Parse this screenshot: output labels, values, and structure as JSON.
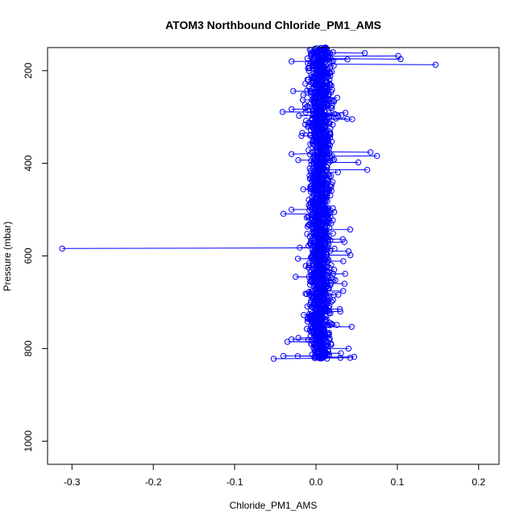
{
  "chart_data": {
    "type": "scatter",
    "title": "ATOM3 Northbound Chloride_PM1_AMS",
    "xlabel": "Chloride_PM1_AMS",
    "ylabel": "Pressure (mbar)",
    "xlim": [
      -0.33,
      0.225
    ],
    "ylim": [
      1050,
      150
    ],
    "y_reversed": true,
    "x_ticks": [
      -0.3,
      -0.2,
      -0.1,
      0.0,
      0.1,
      0.2
    ],
    "x_tick_labels": [
      "-0.3",
      "-0.2",
      "-0.1",
      "0.0",
      "0.1",
      "0.2"
    ],
    "y_ticks": [
      200,
      400,
      600,
      800,
      1000
    ],
    "y_tick_labels": [
      "200",
      "400",
      "600",
      "800",
      "1000"
    ],
    "grid": false,
    "legend": "none",
    "series_color": "#0000ff",
    "marker": "open-circle",
    "connected": true,
    "core_band": {
      "x_min": -0.01,
      "x_max": 0.02,
      "p_min": 150,
      "p_max": 822
    },
    "points": [
      {
        "x": -0.312,
        "y": 584
      },
      {
        "x": -0.02,
        "y": 582
      },
      {
        "x": 0.147,
        "y": 187
      },
      {
        "x": 0.104,
        "y": 175
      },
      {
        "x": 0.101,
        "y": 168
      },
      {
        "x": 0.06,
        "y": 162
      },
      {
        "x": -0.03,
        "y": 180
      },
      {
        "x": -0.028,
        "y": 244
      },
      {
        "x": -0.041,
        "y": 289
      },
      {
        "x": -0.03,
        "y": 283
      },
      {
        "x": 0.075,
        "y": 384
      },
      {
        "x": 0.067,
        "y": 376
      },
      {
        "x": 0.063,
        "y": 414
      },
      {
        "x": 0.052,
        "y": 398
      },
      {
        "x": -0.03,
        "y": 380
      },
      {
        "x": -0.04,
        "y": 509
      },
      {
        "x": -0.03,
        "y": 500
      },
      {
        "x": 0.042,
        "y": 543
      },
      {
        "x": 0.04,
        "y": 590
      },
      {
        "x": 0.035,
        "y": 570
      },
      {
        "x": -0.025,
        "y": 645
      },
      {
        "x": 0.035,
        "y": 660
      },
      {
        "x": 0.03,
        "y": 720
      },
      {
        "x": -0.03,
        "y": 780
      },
      {
        "x": 0.04,
        "y": 800
      },
      {
        "x": -0.052,
        "y": 822
      },
      {
        "x": -0.04,
        "y": 816
      },
      {
        "x": 0.042,
        "y": 820
      },
      {
        "x": 0.047,
        "y": 818
      },
      {
        "x": 0.03,
        "y": 820
      }
    ]
  }
}
